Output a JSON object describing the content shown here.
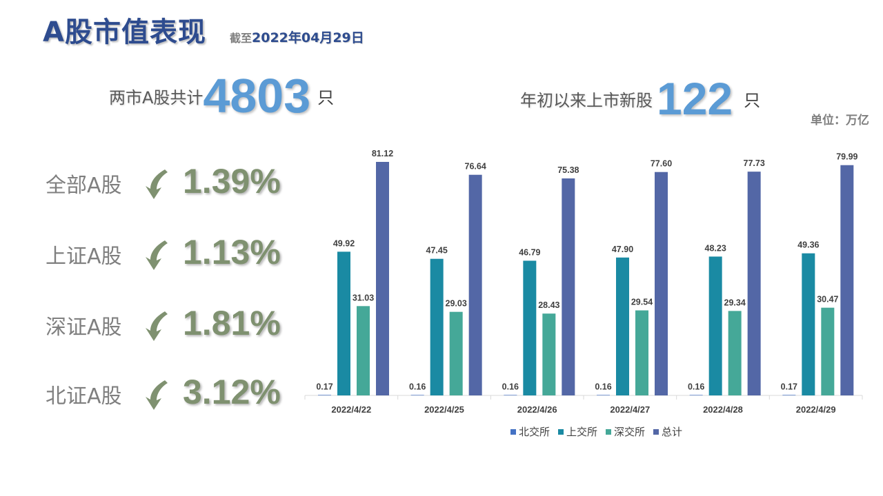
{
  "header": {
    "title": "A股市值表现",
    "asof_prefix": "截至",
    "asof_date": "2022年04月29日"
  },
  "stats": {
    "total_label": "两市A股共计",
    "total_value": "4803",
    "total_unit": "只",
    "ipo_label": "年初以来上市新股",
    "ipo_value": "122",
    "ipo_unit": "只"
  },
  "unit_label": "单位：万亿",
  "changes": [
    {
      "name": "全部A股",
      "value": "1.39%",
      "direction": "down",
      "icon": "down-arrow-icon"
    },
    {
      "name": "上证A股",
      "value": "1.13%",
      "direction": "down",
      "icon": "down-arrow-icon"
    },
    {
      "name": "深证A股",
      "value": "1.81%",
      "direction": "down",
      "icon": "down-arrow-icon"
    },
    {
      "name": "北证A股",
      "value": "3.12%",
      "direction": "down",
      "icon": "down-arrow-icon"
    }
  ],
  "colors": {
    "title": "#2e4c8f",
    "stat_number": "#5b9bd5",
    "change": "#7f9170"
  },
  "chart_data": {
    "type": "bar",
    "categories": [
      "2022/4/22",
      "2022/4/25",
      "2022/4/26",
      "2022/4/27",
      "2022/4/28",
      "2022/4/29"
    ],
    "series": [
      {
        "name": "北交所",
        "color": "#4472c4",
        "values": [
          0.17,
          0.16,
          0.16,
          0.16,
          0.16,
          0.17
        ]
      },
      {
        "name": "上交所",
        "color": "#1a8aa3",
        "values": [
          49.92,
          47.45,
          46.79,
          47.9,
          48.23,
          49.36
        ]
      },
      {
        "name": "深交所",
        "color": "#45a898",
        "values": [
          31.03,
          29.03,
          28.43,
          29.54,
          29.34,
          30.47
        ]
      },
      {
        "name": "总计",
        "color": "#5367a6",
        "values": [
          81.12,
          76.64,
          75.38,
          77.6,
          77.73,
          79.99
        ]
      }
    ],
    "ylim": [
      0,
      90
    ],
    "data_labels": true,
    "grid": false,
    "legend_position": "bottom",
    "title": "",
    "xlabel": "",
    "ylabel": ""
  }
}
